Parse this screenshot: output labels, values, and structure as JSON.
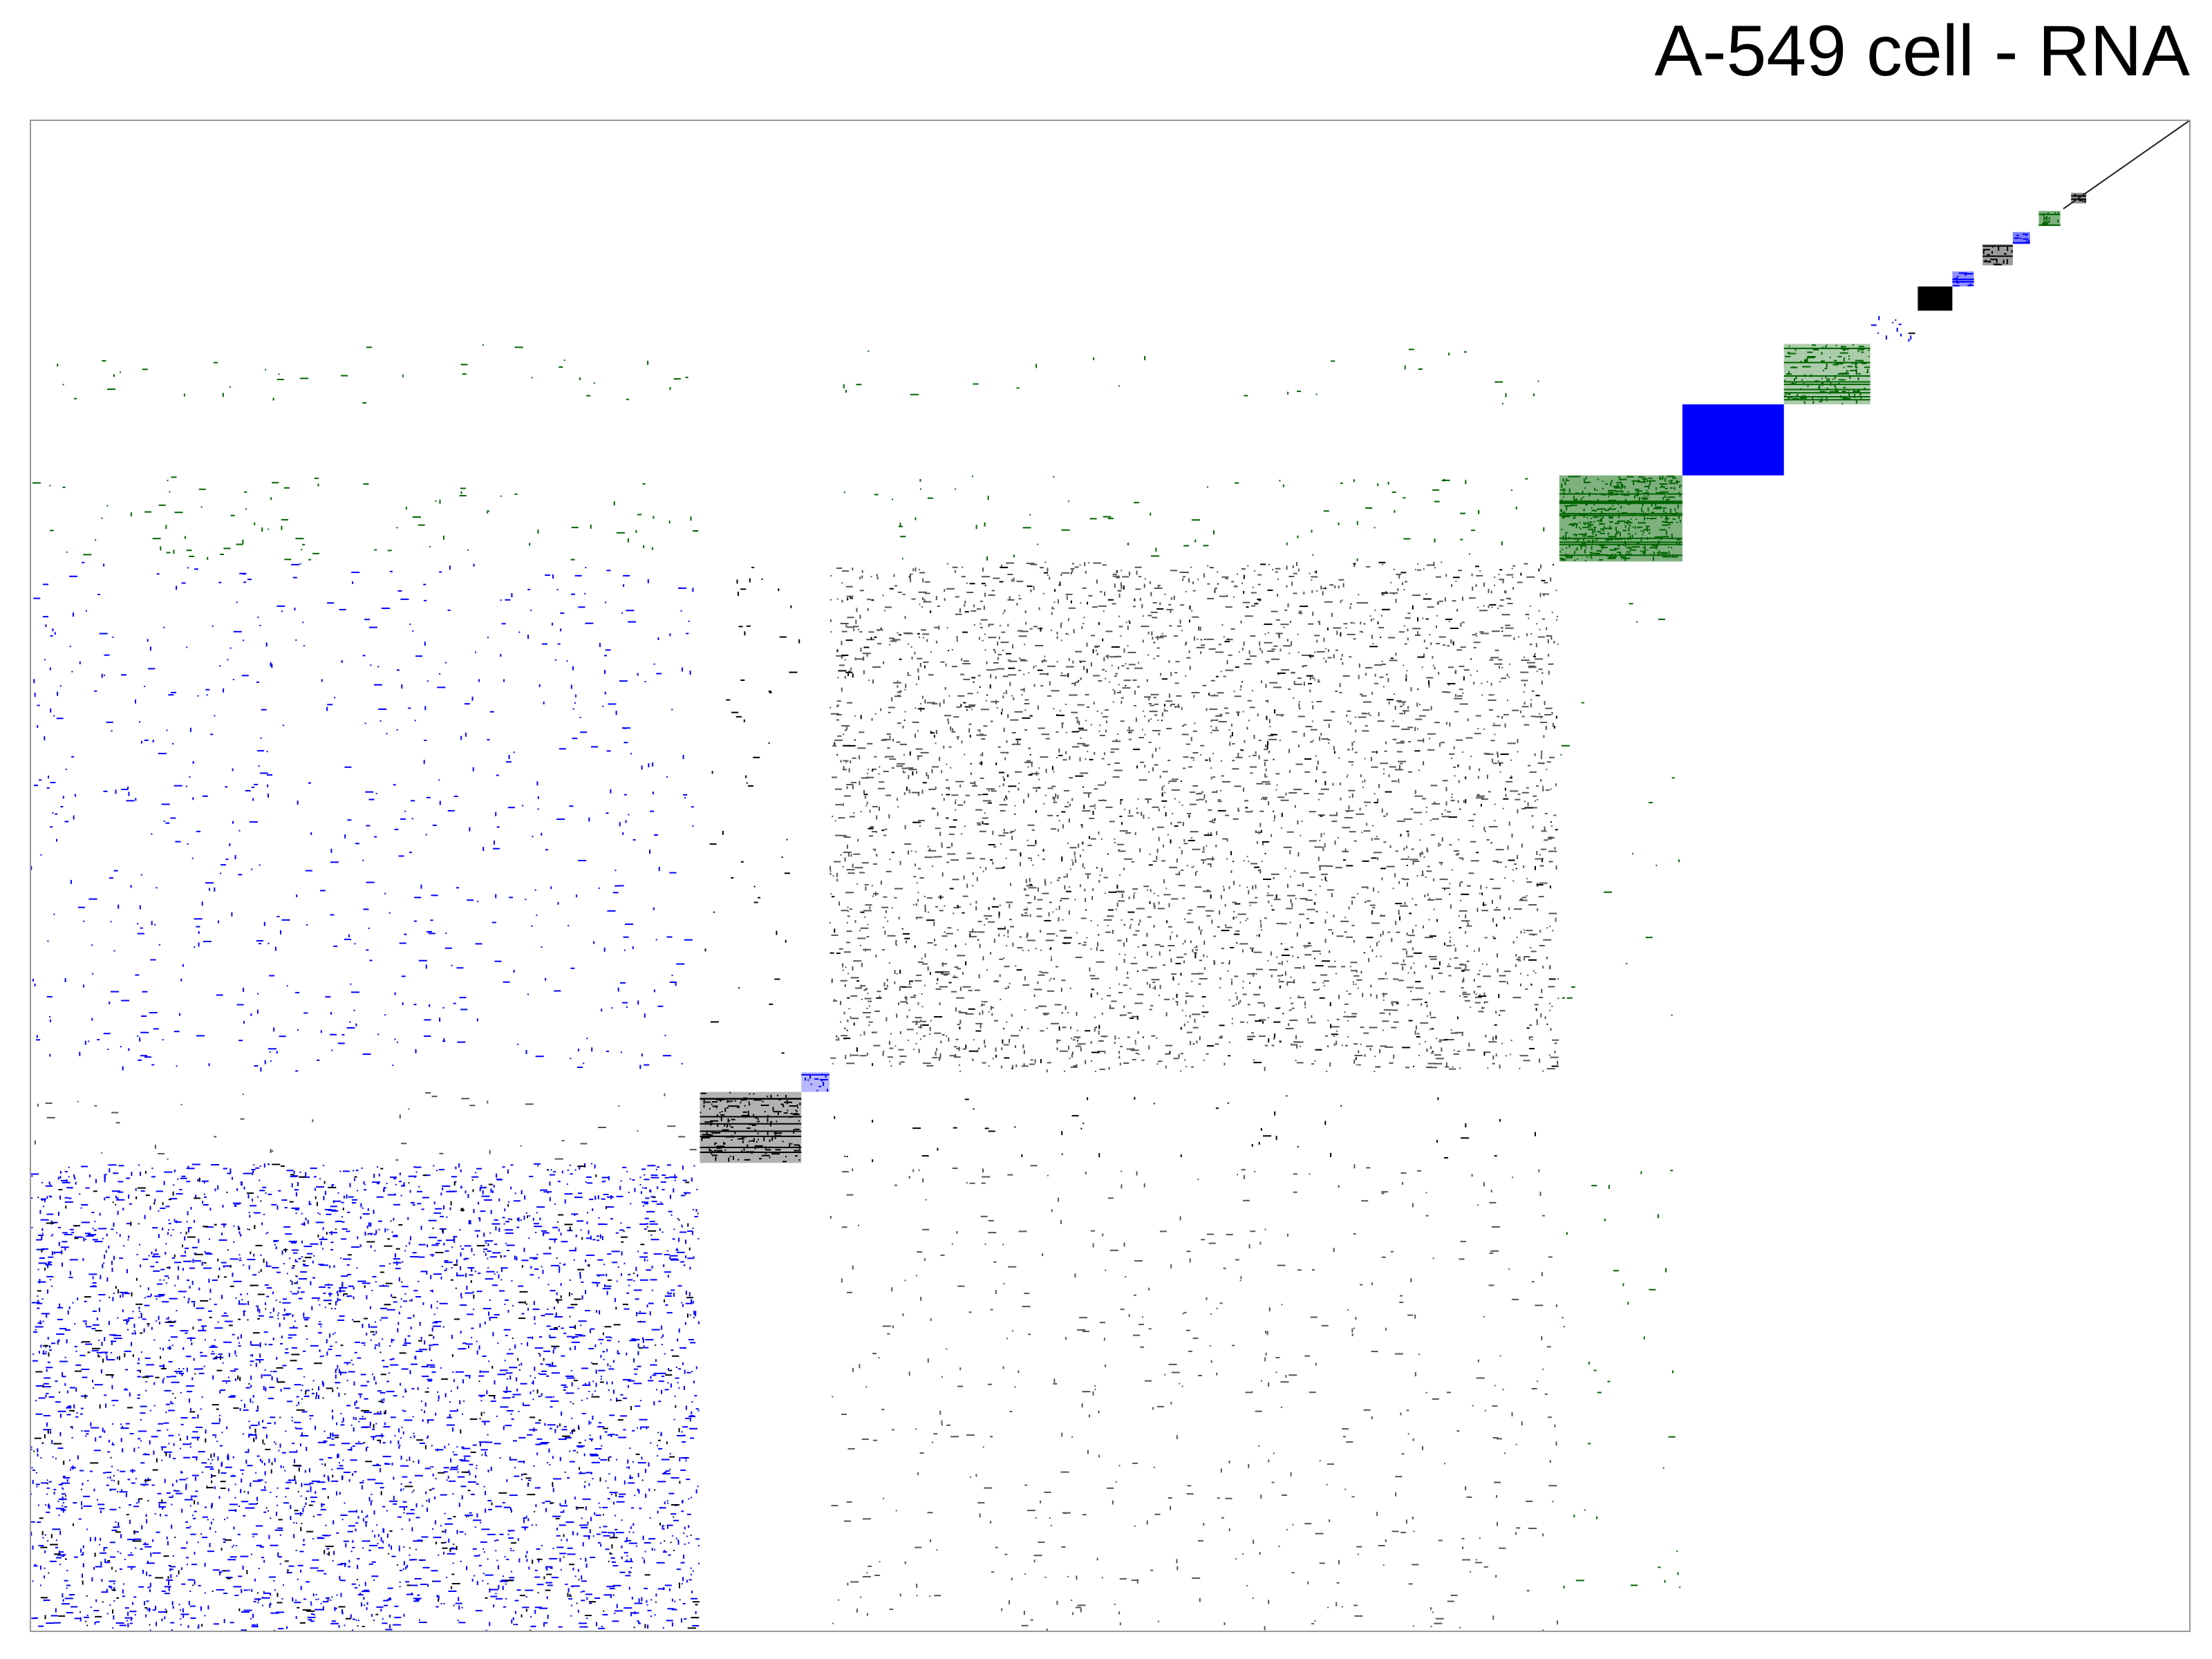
{
  "title": "A-549 cell - RNA",
  "chart_data": {
    "type": "heatmap",
    "title": "A-549 cell - RNA",
    "xlabel": "",
    "ylabel": "",
    "grid": false,
    "legend": "none",
    "colors": {
      "background": "#ffffff",
      "frame": "#999999",
      "black": "#000000",
      "blue": "#0000ff",
      "green": "#006400",
      "grey": "#555555"
    },
    "diagonal_blocks": [
      {
        "name": "block-1",
        "start": 0.0,
        "end": 0.31,
        "color": "blue",
        "density": 0.38
      },
      {
        "name": "block-2",
        "start": 0.31,
        "end": 0.357,
        "color": "black",
        "density": 0.55
      },
      {
        "name": "block-3",
        "start": 0.357,
        "end": 0.37,
        "color": "blue",
        "density": 0.5
      },
      {
        "name": "block-4",
        "start": 0.37,
        "end": 0.708,
        "color": "grey",
        "density": 0.3
      },
      {
        "name": "block-5",
        "start": 0.708,
        "end": 0.765,
        "color": "green",
        "density": 0.9
      },
      {
        "name": "block-6",
        "start": 0.765,
        "end": 0.812,
        "color": "blue",
        "density": 1.0
      },
      {
        "name": "block-7",
        "start": 0.812,
        "end": 0.852,
        "color": "green",
        "density": 0.6
      },
      {
        "name": "block-8",
        "start": 0.852,
        "end": 0.874,
        "color": "blue",
        "density": 0.25
      },
      {
        "name": "block-9",
        "start": 0.874,
        "end": 0.89,
        "color": "black",
        "density": 1.0
      },
      {
        "name": "block-10",
        "start": 0.89,
        "end": 0.9,
        "color": "blue",
        "density": 0.8
      },
      {
        "name": "block-11",
        "start": 0.904,
        "end": 0.918,
        "color": "black",
        "density": 0.7
      },
      {
        "name": "block-12",
        "start": 0.918,
        "end": 0.926,
        "color": "blue",
        "density": 0.9
      },
      {
        "name": "block-13",
        "start": 0.93,
        "end": 0.94,
        "color": "green",
        "density": 0.9
      },
      {
        "name": "block-14",
        "start": 0.945,
        "end": 0.952,
        "color": "black",
        "density": 0.8
      }
    ],
    "off_diagonal": [
      {
        "row_block": "block-5",
        "col_block": "block-1",
        "color": "green",
        "density": 0.05
      },
      {
        "row_block": "block-5",
        "col_block": "block-4",
        "color": "green",
        "density": 0.04
      },
      {
        "row_block": "block-7",
        "col_block": "block-1",
        "color": "green",
        "density": 0.03
      },
      {
        "row_block": "block-7",
        "col_block": "block-4",
        "color": "green",
        "density": 0.02
      },
      {
        "row_block": "block-4",
        "col_block": "block-1",
        "color": "blue",
        "density": 0.06
      },
      {
        "row_block": "block-4",
        "col_block": "block-2",
        "color": "black",
        "density": 0.03
      },
      {
        "row_block": "block-1",
        "col_block": "block-4",
        "color": "grey",
        "density": 0.05
      },
      {
        "row_block": "block-2",
        "col_block": "block-1",
        "color": "grey",
        "density": 0.03
      },
      {
        "row_block": "block-2",
        "col_block": "block-4",
        "color": "black",
        "density": 0.03
      },
      {
        "row_block": "block-1",
        "col_block": "block-5",
        "color": "green",
        "density": 0.02
      },
      {
        "row_block": "block-4",
        "col_block": "block-5",
        "color": "green",
        "density": 0.01
      }
    ]
  }
}
